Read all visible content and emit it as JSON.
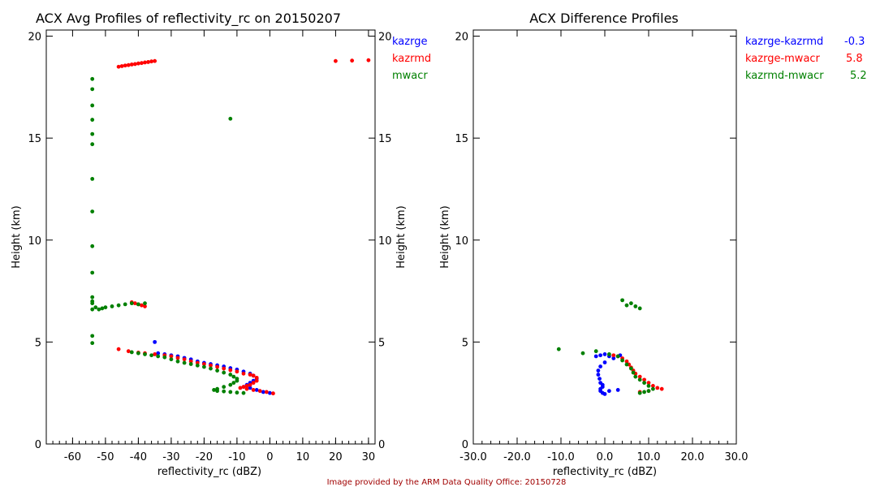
{
  "footer": {
    "text": "Image provided by the ARM Data Quality Office: 20150728",
    "color": "#a00000"
  },
  "colors": {
    "kazrge": "#0000ff",
    "kazrmd": "#ff0000",
    "mwacr": "#008000",
    "axis": "#000000"
  },
  "chart_data": [
    {
      "type": "scatter",
      "title": "ACX Avg Profiles of reflectivity_rc on 20150207",
      "xlabel": "reflectivity_rc (dBZ)",
      "ylabel": "Height (km)",
      "ylabel_right": "Height (km)",
      "xlim": [
        -68,
        32
      ],
      "ylim": [
        0,
        20.3
      ],
      "xticks": [
        "-60",
        "-50",
        "-40",
        "-30",
        "-20",
        "-10",
        "0",
        "10",
        "20",
        "30"
      ],
      "xtick_values": [
        -60,
        -50,
        -40,
        -30,
        -20,
        -10,
        0,
        10,
        20,
        30
      ],
      "yticks": [
        "0",
        "5",
        "10",
        "15",
        "20"
      ],
      "ytick_values": [
        0,
        5,
        10,
        15,
        20
      ],
      "legend": [
        "kazrge",
        "kazrmd",
        "mwacr"
      ],
      "series": [
        {
          "name": "kazrge",
          "color_key": "kazrge",
          "x": [
            -35,
            -34,
            -32,
            -30,
            -28,
            -26,
            -24,
            -22,
            -20,
            -18,
            -16,
            -14,
            -12,
            -10,
            -8,
            -6,
            -5,
            -4,
            -5,
            -6,
            -7,
            -8,
            -6,
            -4,
            -2,
            0
          ],
          "y": [
            5.0,
            4.45,
            4.4,
            4.35,
            4.3,
            4.22,
            4.15,
            4.05,
            3.98,
            3.92,
            3.86,
            3.8,
            3.72,
            3.65,
            3.55,
            3.45,
            3.35,
            3.2,
            3.1,
            3.0,
            2.9,
            2.8,
            2.75,
            2.65,
            2.55,
            2.5
          ]
        },
        {
          "name": "kazrmd",
          "color_key": "kazrmd",
          "x": [
            -46,
            -45,
            -44,
            -43,
            -42,
            -41,
            -40,
            -39,
            -38,
            -37,
            -36,
            -35,
            20,
            25,
            30,
            -42,
            -41,
            -40,
            -39,
            -38,
            -46,
            -43,
            -40,
            -38,
            -35,
            -32,
            -30,
            -28,
            -26,
            -24,
            -22,
            -20,
            -18,
            -16,
            -14,
            -12,
            -10,
            -8,
            -6,
            -5,
            -4,
            -4,
            -5,
            -6,
            -7,
            -8,
            -9,
            -7,
            -5,
            -3,
            -1,
            1
          ],
          "y": [
            18.5,
            18.53,
            18.56,
            18.58,
            18.61,
            18.63,
            18.66,
            18.68,
            18.71,
            18.73,
            18.76,
            18.78,
            18.78,
            18.8,
            18.82,
            6.95,
            6.9,
            6.85,
            6.8,
            6.75,
            4.65,
            4.55,
            4.48,
            4.45,
            4.4,
            4.35,
            4.3,
            4.22,
            4.15,
            4.05,
            3.98,
            3.92,
            3.85,
            3.78,
            3.7,
            3.62,
            3.55,
            3.45,
            3.4,
            3.35,
            3.25,
            3.1,
            3.0,
            2.9,
            2.85,
            2.8,
            2.75,
            2.7,
            2.65,
            2.6,
            2.55,
            2.48
          ]
        },
        {
          "name": "mwacr",
          "color_key": "mwacr",
          "x": [
            -54,
            -54,
            -54,
            -54,
            -54,
            -54,
            -54,
            -54,
            -54,
            -54,
            -54,
            -54,
            -54,
            -54,
            -12,
            -53,
            -52,
            -51,
            -50,
            -48,
            -46,
            -44,
            -42,
            -40,
            -38,
            -54,
            -54,
            -42,
            -40,
            -38,
            -36,
            -34,
            -32,
            -30,
            -28,
            -26,
            -24,
            -22,
            -20,
            -18,
            -16,
            -14,
            -12,
            -11,
            -10,
            -10,
            -11,
            -12,
            -14,
            -16,
            -17,
            -16,
            -14,
            -12,
            -10,
            -8
          ],
          "y": [
            17.9,
            17.4,
            16.6,
            15.9,
            15.2,
            14.7,
            13.0,
            11.4,
            9.7,
            8.4,
            7.2,
            6.9,
            5.3,
            4.95,
            15.95,
            6.7,
            6.6,
            6.65,
            6.7,
            6.75,
            6.8,
            6.85,
            6.9,
            6.85,
            6.9,
            7.0,
            6.6,
            4.5,
            4.45,
            4.4,
            4.35,
            4.3,
            4.25,
            4.15,
            4.05,
            3.98,
            3.92,
            3.85,
            3.78,
            3.7,
            3.6,
            3.5,
            3.4,
            3.3,
            3.2,
            3.1,
            3.0,
            2.9,
            2.8,
            2.7,
            2.65,
            2.6,
            2.58,
            2.55,
            2.52,
            2.5
          ]
        }
      ]
    },
    {
      "type": "scatter",
      "title": "ACX Difference Profiles",
      "xlabel": "reflectivity_rc (dBZ)",
      "ylabel": "Height (km)",
      "xlim": [
        -30,
        30
      ],
      "ylim": [
        0,
        20.3
      ],
      "xticks": [
        "-30.0",
        "-20.0",
        "-10.0",
        "0.0",
        "10.0",
        "20.0",
        "30.0"
      ],
      "xtick_values": [
        -30,
        -20,
        -10,
        0,
        10,
        20,
        30
      ],
      "yticks": [
        "0",
        "5",
        "10",
        "15",
        "20"
      ],
      "ytick_values": [
        0,
        5,
        10,
        15,
        20
      ],
      "legend": [
        {
          "name": "kazrge-kazrmd",
          "value": "-0.3",
          "color_key": "kazrge"
        },
        {
          "name": "kazrge-mwacr",
          "value": "5.8",
          "color_key": "kazrmd"
        },
        {
          "name": "kazrmd-mwacr",
          "value": "5.2",
          "color_key": "mwacr"
        }
      ],
      "series": [
        {
          "name": "kazrge-kazrmd",
          "color_key": "kazrge",
          "x": [
            -2,
            -1,
            0,
            1,
            2,
            3,
            3.5,
            0,
            -1,
            -1.5,
            -1.5,
            -1.2,
            -1,
            -0.5,
            -0.5,
            -1,
            -1,
            -0.5,
            0,
            1,
            3
          ],
          "y": [
            4.3,
            4.35,
            4.4,
            4.3,
            4.2,
            4.3,
            4.35,
            4.0,
            3.8,
            3.6,
            3.4,
            3.2,
            3.0,
            2.9,
            2.8,
            2.7,
            2.6,
            2.5,
            2.45,
            2.6,
            2.65
          ]
        },
        {
          "name": "kazrge-mwacr",
          "color_key": "kazrmd",
          "x": [
            2,
            3,
            4,
            5,
            5.5,
            6,
            6.5,
            7,
            8,
            9,
            10,
            11,
            12,
            13,
            10,
            8
          ],
          "y": [
            4.35,
            4.3,
            4.2,
            4.05,
            3.9,
            3.75,
            3.6,
            3.45,
            3.3,
            3.15,
            3.0,
            2.85,
            2.75,
            2.7,
            2.6,
            2.55
          ]
        },
        {
          "name": "kazrmd-mwacr",
          "color_key": "mwacr",
          "x": [
            -10.5,
            -5,
            -2,
            1,
            3,
            4,
            5,
            6,
            6.5,
            7,
            8,
            9,
            10,
            11,
            10,
            9,
            8,
            4,
            5,
            6,
            7,
            8
          ],
          "y": [
            4.65,
            4.45,
            4.55,
            4.4,
            4.3,
            4.1,
            3.9,
            3.7,
            3.5,
            3.3,
            3.15,
            3.0,
            2.85,
            2.7,
            2.6,
            2.55,
            2.5,
            7.05,
            6.8,
            6.9,
            6.75,
            6.65
          ]
        }
      ]
    }
  ]
}
